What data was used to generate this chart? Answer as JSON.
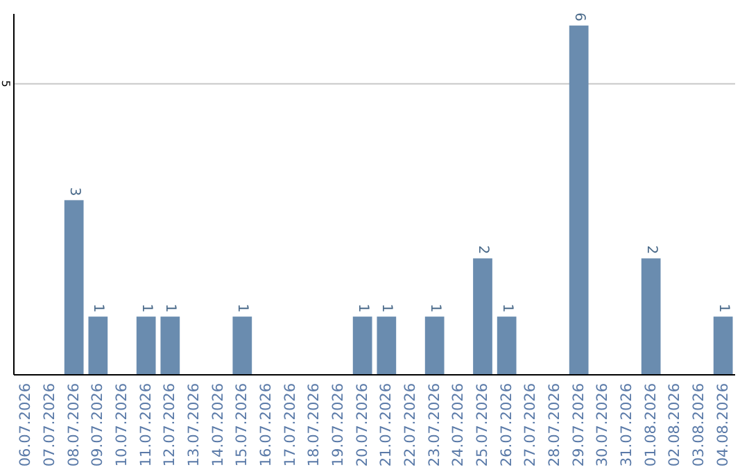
{
  "chart_data": {
    "type": "bar",
    "categories": [
      "06.07.2026",
      "07.07.2026",
      "08.07.2026",
      "09.07.2026",
      "10.07.2026",
      "11.07.2026",
      "12.07.2026",
      "13.07.2026",
      "14.07.2026",
      "15.07.2026",
      "16.07.2026",
      "17.07.2026",
      "18.07.2026",
      "19.07.2026",
      "20.07.2026",
      "21.07.2026",
      "22.07.2026",
      "23.07.2026",
      "24.07.2026",
      "25.07.2026",
      "26.07.2026",
      "27.07.2026",
      "28.07.2026",
      "29.07.2026",
      "30.07.2026",
      "31.07.2026",
      "01.08.2026",
      "02.08.2026",
      "03.08.2026",
      "04.08.2026"
    ],
    "values": [
      0,
      0,
      3,
      1,
      0,
      1,
      1,
      0,
      0,
      1,
      0,
      0,
      0,
      0,
      1,
      1,
      0,
      1,
      0,
      2,
      1,
      0,
      0,
      6,
      0,
      0,
      2,
      0,
      0,
      1
    ],
    "value_labels": [
      null,
      null,
      "3",
      "1",
      null,
      "1",
      "1",
      null,
      null,
      "1",
      null,
      null,
      null,
      null,
      "1",
      "1",
      null,
      "1",
      null,
      "2",
      "1",
      null,
      null,
      "6",
      null,
      null,
      "2",
      null,
      null,
      "1"
    ],
    "color": "#6a8caf",
    "ylim": [
      0,
      6.2
    ],
    "yticks": [
      5
    ],
    "grid": "y"
  }
}
